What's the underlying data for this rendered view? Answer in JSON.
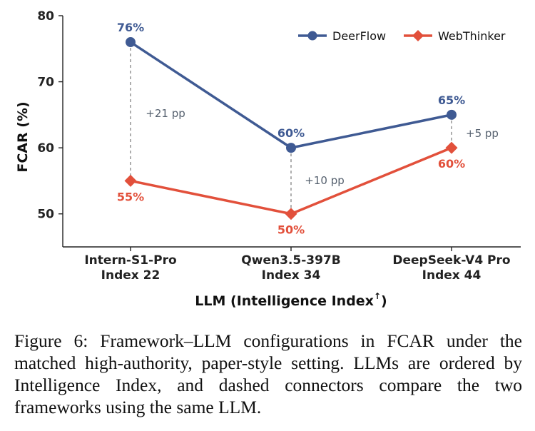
{
  "chart_data": {
    "type": "line",
    "ylabel": "FCAR (%)",
    "xlabel": "LLM (Intelligence Index",
    "xlabel_sup": "↑",
    "xlabel_close": ")",
    "ylim": [
      45,
      80
    ],
    "yticks": [
      "50",
      "60",
      "70",
      "80"
    ],
    "categories": [
      {
        "line1": "Intern-S1-Pro",
        "line2": "Index 22"
      },
      {
        "line1": "Qwen3.5-397B",
        "line2": "Index 34"
      },
      {
        "line1": "DeepSeek-V4 Pro",
        "line2": "Index 44"
      }
    ],
    "series": [
      {
        "name": "DeerFlow",
        "color": "#3f5a93",
        "marker": "circle",
        "values": [
          76,
          60,
          65
        ],
        "labels": [
          "76%",
          "60%",
          "65%"
        ]
      },
      {
        "name": "WebThinker",
        "color": "#e2503b",
        "marker": "diamond",
        "values": [
          55,
          50,
          60
        ],
        "labels": [
          "55%",
          "50%",
          "60%"
        ]
      }
    ],
    "gaps": [
      "+21 pp",
      "+10 pp",
      "+5 pp"
    ],
    "connector_color": "#a6a6a6",
    "legend_position": "top-right",
    "grid": false
  },
  "caption": "Figure 6: Framework–LLM configurations in FCAR under the matched high-authority, paper-style setting. LLMs are ordered by Intelligence Index, and dashed connectors compare the two frameworks using the same LLM."
}
